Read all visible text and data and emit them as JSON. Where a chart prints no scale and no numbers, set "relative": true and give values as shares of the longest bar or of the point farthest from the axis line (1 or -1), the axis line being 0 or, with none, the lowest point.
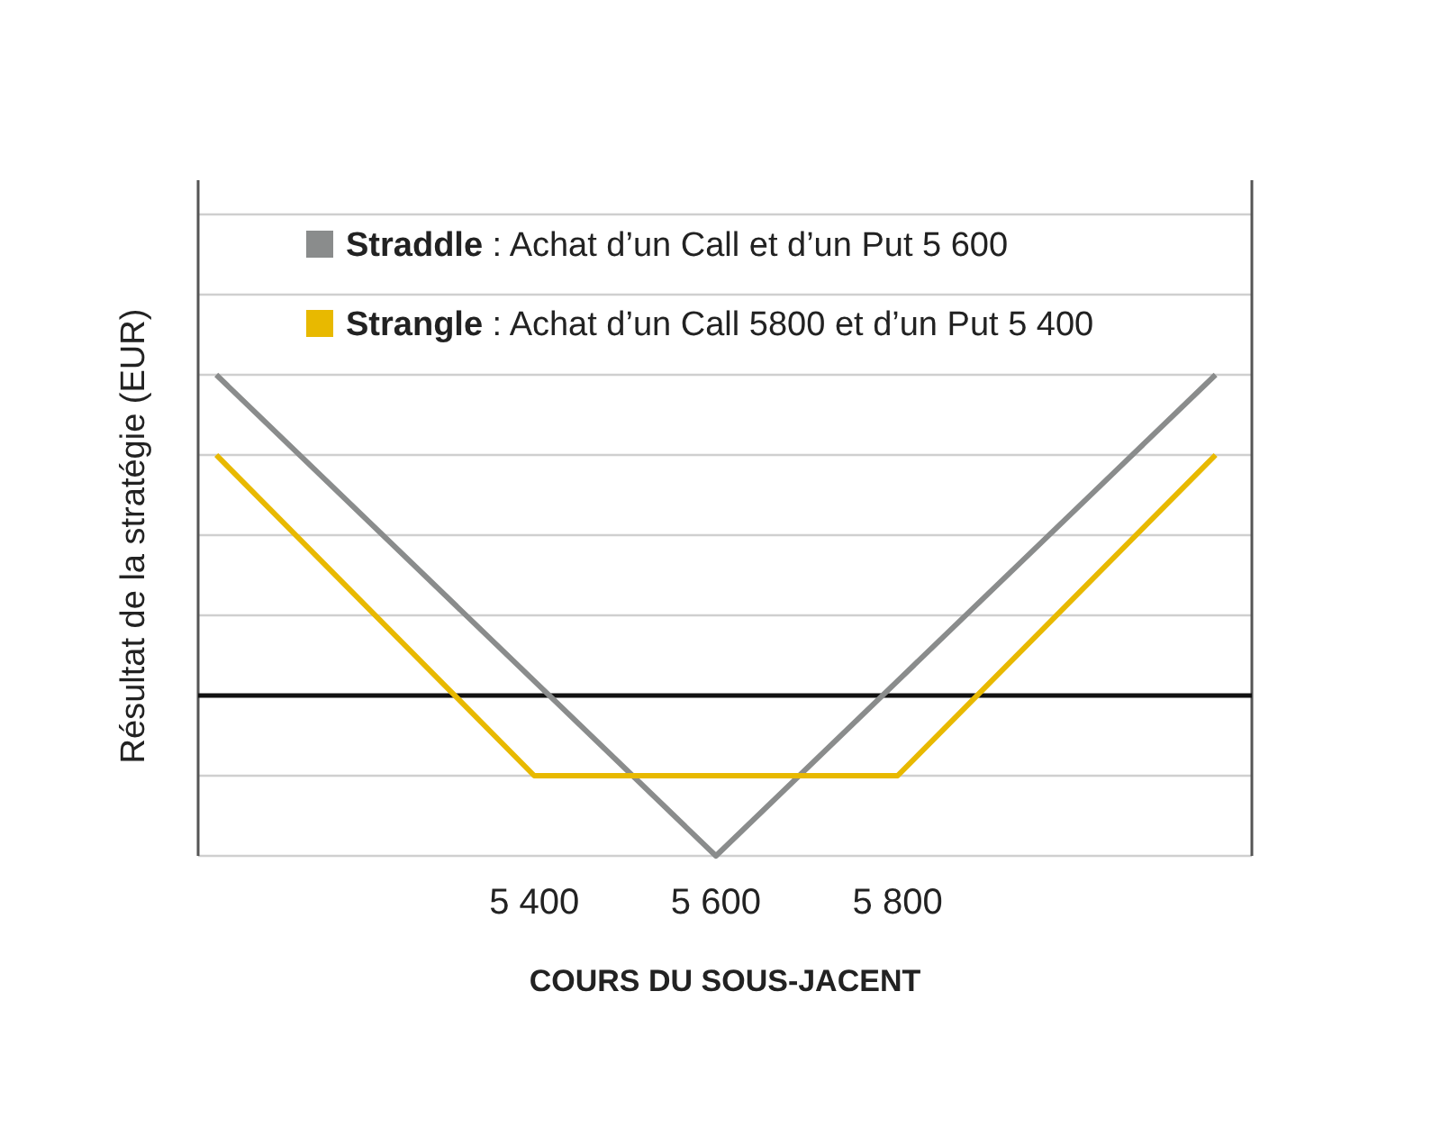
{
  "chart_data": {
    "type": "line",
    "relative": true,
    "xlabel": "COURS DU SOUS-JACENT",
    "ylabel": "Résultat de la stratégie (EUR)",
    "xlim": [
      5030,
      6190
    ],
    "xticks": [
      {
        "value": 5400,
        "label": "5 400"
      },
      {
        "value": 5600,
        "label": "5 600"
      },
      {
        "value": 5800,
        "label": "5 800"
      }
    ],
    "grid": "y",
    "legend": "top left",
    "marker": "none",
    "line_style": "solid",
    "series": [
      {
        "name": "Straddle : Achat d’un Call et d’un Put 5 600",
        "color": "#8a8c8c",
        "x": [
          5050,
          5600,
          6150
        ],
        "values": [
          1,
          -0.5,
          1
        ]
      },
      {
        "name": "Strangle : Achat d’un Call 5800 et d’un Put 5 400",
        "color": "#e8b900",
        "x": [
          5050,
          5400,
          5800,
          6150
        ],
        "values": [
          0.75,
          -0.25,
          -0.25,
          0.75
        ]
      }
    ]
  }
}
